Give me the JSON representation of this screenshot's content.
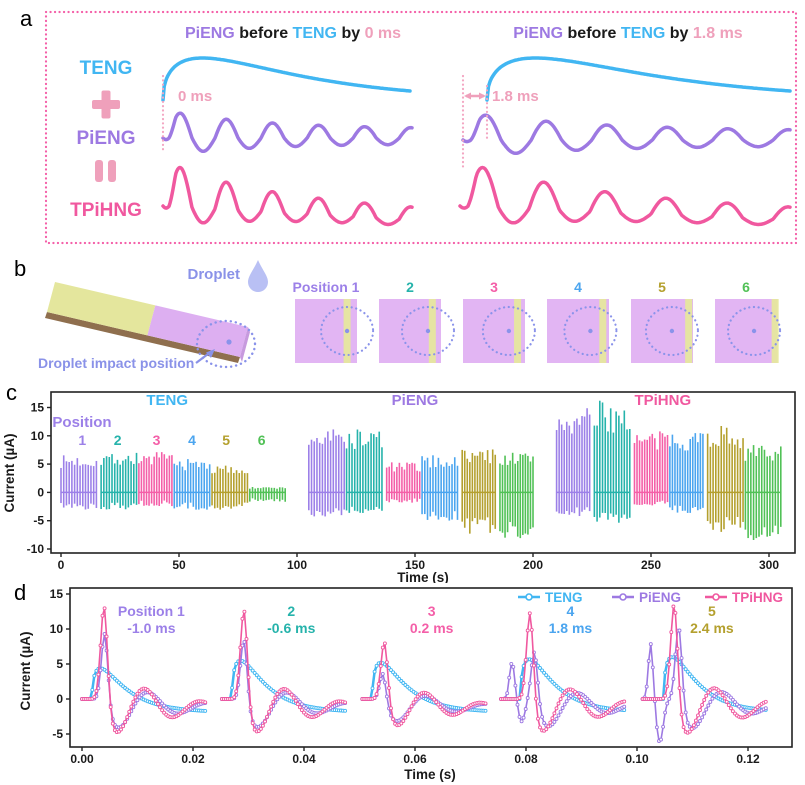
{
  "colors": {
    "teng": "#41b6f2",
    "pieng": "#9d79e2",
    "tpihng": "#f0589f",
    "softpink": "#efa0bb",
    "dashpink": "#f45fa8",
    "teal": "#26b3ab",
    "blue4": "#4ba5ef",
    "olive": "#b4a02e",
    "green": "#51c156",
    "purple1": "#9c80e8",
    "ink": "#1a1a1a",
    "axis": "#222222",
    "plate_yellow": "#e4e69d",
    "plate_purple": "#ddaff1",
    "square_purple": "#e2b5f3",
    "stripe_yellow": "#e6e79e",
    "droplet_fill": "#b9c0f4",
    "periwinkle": "#8a92e8",
    "circle_dotted": "#8a93ea",
    "plate_brown": "#8f6f4e"
  },
  "panel_letters": {
    "a": "a",
    "b": "b",
    "c": "c",
    "d": "d"
  },
  "panel_a": {
    "title_left": [
      [
        "PiENG",
        "pieng"
      ],
      [
        " before ",
        "ink"
      ],
      [
        "TENG",
        "teng"
      ],
      [
        " by ",
        "ink"
      ],
      [
        "0 ms",
        "softpink"
      ]
    ],
    "title_right": [
      [
        "PiENG",
        "pieng"
      ],
      [
        " before ",
        "ink"
      ],
      [
        "TENG",
        "teng"
      ],
      [
        " by ",
        "ink"
      ],
      [
        "1.8 ms",
        "softpink"
      ]
    ],
    "equation_labels": [
      [
        "TENG",
        "teng"
      ],
      [
        "PiENG",
        "pieng"
      ],
      [
        "TPiHNG",
        "tpihng"
      ]
    ],
    "plus_color": "softpink",
    "equals_color": "softpink",
    "delay_left": "0 ms",
    "delay_right": "1.8 ms"
  },
  "panel_b": {
    "droplet_label": "Droplet",
    "impact_label": "Droplet impact position",
    "position_labels": [
      "Position 1",
      "2",
      "3",
      "4",
      "5",
      "6"
    ],
    "position_colors": [
      "purple1",
      "teal",
      "dashpink",
      "blue4",
      "olive",
      "green"
    ],
    "squares": [
      {
        "stripe": 0.84,
        "dot": 0.84
      },
      {
        "stripe": 0.86,
        "dot": 0.79
      },
      {
        "stripe": 0.88,
        "dot": 0.74
      },
      {
        "stripe": 0.9,
        "dot": 0.7
      },
      {
        "stripe": 0.93,
        "dot": 0.66
      },
      {
        "stripe": 0.97,
        "dot": 0.63
      }
    ]
  },
  "chart_data": [
    {
      "panel": "c",
      "type": "bar",
      "subtype": "spike-train",
      "xlabel": "Time (s)",
      "ylabel": "Current (µA)",
      "xlim": [
        -4,
        311
      ],
      "ylim": [
        -10.7,
        17.7
      ],
      "xticks": [
        0,
        50,
        100,
        150,
        200,
        250,
        300
      ],
      "yticks": [
        -10,
        -5,
        0,
        5,
        10,
        15
      ],
      "generator_titles": [
        {
          "label": "TENG",
          "color": "teng",
          "x": 45
        },
        {
          "label": "PiENG",
          "color": "pieng",
          "x": 150
        },
        {
          "label": "TPiHNG",
          "color": "tpihng",
          "x": 255
        }
      ],
      "position_header": "Position",
      "position_labels": [
        "1",
        "2",
        "3",
        "4",
        "5",
        "6"
      ],
      "position_label_x": [
        9,
        24,
        40.5,
        55.5,
        70,
        85
      ],
      "position_colors": [
        "purple1",
        "teal",
        "dashpink",
        "blue4",
        "olive",
        "green"
      ],
      "groups": [
        {
          "gen": "TENG",
          "pos": 1,
          "t": [
            0,
            15
          ],
          "peak": 5.5,
          "trough": -2.5
        },
        {
          "gen": "TENG",
          "pos": 2,
          "t": [
            17,
            32
          ],
          "peak": 6.0,
          "trough": -2.5
        },
        {
          "gen": "TENG",
          "pos": 3,
          "t": [
            33,
            47
          ],
          "peak": 6.0,
          "trough": -2.0
        },
        {
          "gen": "TENG",
          "pos": 4,
          "t": [
            48,
            63
          ],
          "peak": 5.0,
          "trough": -2.5
        },
        {
          "gen": "TENG",
          "pos": 5,
          "t": [
            64,
            79
          ],
          "peak": 4.0,
          "trough": -2.5
        },
        {
          "gen": "TENG",
          "pos": 6,
          "t": [
            80,
            95
          ],
          "peak": 0.8,
          "trough": -1.4
        },
        {
          "gen": "PiENG",
          "pos": 1,
          "t": [
            105,
            120
          ],
          "peak": 9.5,
          "trough": -3.5
        },
        {
          "gen": "PiENG",
          "pos": 2,
          "t": [
            121,
            136
          ],
          "peak": 9.5,
          "trough": -3.0
        },
        {
          "gen": "PiENG",
          "pos": 3,
          "t": [
            138,
            152
          ],
          "peak": 4.5,
          "trough": -1.5
        },
        {
          "gen": "PiENG",
          "pos": 4,
          "t": [
            153,
            168
          ],
          "peak": 5.5,
          "trough": -4.5
        },
        {
          "gen": "PiENG",
          "pos": 5,
          "t": [
            170,
            184
          ],
          "peak": 6.5,
          "trough": -6.0
        },
        {
          "gen": "PiENG",
          "pos": 6,
          "t": [
            186,
            200
          ],
          "peak": 6.0,
          "trough": -7.0
        },
        {
          "gen": "TPiHNG",
          "pos": 1,
          "t": [
            210,
            224
          ],
          "peak": 12.5,
          "trough": -3.5
        },
        {
          "gen": "TPiHNG",
          "pos": 2,
          "t": [
            226,
            241
          ],
          "peak": 13.5,
          "trough": -4.5
        },
        {
          "gen": "TPiHNG",
          "pos": 3,
          "t": [
            243,
            257
          ],
          "peak": 9.0,
          "trough": -2.0
        },
        {
          "gen": "TPiHNG",
          "pos": 4,
          "t": [
            258,
            272
          ],
          "peak": 9.5,
          "trough": -3.0
        },
        {
          "gen": "TPiHNG",
          "pos": 5,
          "t": [
            274,
            289
          ],
          "peak": 10.0,
          "trough": -6.0
        },
        {
          "gen": "TPiHNG",
          "pos": 6,
          "t": [
            290,
            305
          ],
          "peak": 7.0,
          "trough": -7.0
        }
      ]
    },
    {
      "panel": "d",
      "type": "line",
      "xlabel": "Time (s)",
      "ylabel": "Current (µA)",
      "xlim": [
        -0.0022,
        0.1258
      ],
      "ylim": [
        -6.9,
        15.9
      ],
      "xticks": [
        "0.00",
        "0.02",
        "0.04",
        "0.06",
        "0.08",
        "0.10",
        "0.12"
      ],
      "yticks": [
        -5,
        0,
        5,
        10,
        15
      ],
      "legend": [
        {
          "label": "TENG",
          "color": "teng"
        },
        {
          "label": "PiENG",
          "color": "pieng"
        },
        {
          "label": "TPiHNG",
          "color": "tpihng"
        }
      ],
      "clusters": [
        {
          "position_label": "Position 1",
          "offset_label": "-1.0 ms",
          "label_color": "purple1",
          "t0": 0.0,
          "teng_peak": 4.7,
          "pieng_peak": 9.3,
          "tpihng_peak": 13.3,
          "pieng_lead_ms": -1.0
        },
        {
          "position_label": "2",
          "offset_label": "-0.6 ms",
          "label_color": "teal",
          "t0": 0.0252,
          "teng_peak": 5.8,
          "pieng_peak": 8.5,
          "tpihng_peak": 12.8,
          "pieng_lead_ms": -0.6
        },
        {
          "position_label": "3",
          "offset_label": "0.2 ms",
          "label_color": "dashpink",
          "t0": 0.0505,
          "teng_peak": 5.5,
          "pieng_peak": 3.6,
          "tpihng_peak": 8.2,
          "pieng_lead_ms": 0.2
        },
        {
          "position_label": "4",
          "offset_label": "1.8 ms",
          "label_color": "blue4",
          "t0": 0.0755,
          "teng_peak": 6.0,
          "pieng_peak": 6.8,
          "tpihng_peak": 12.3,
          "pieng_lead_ms": 1.8
        },
        {
          "position_label": "5",
          "offset_label": "2.4 ms",
          "label_color": "olive",
          "t0": 0.101,
          "teng_peak": 6.3,
          "pieng_peak": 10.5,
          "tpihng_peak": 13.7,
          "pieng_lead_ms": 2.4
        }
      ]
    }
  ]
}
